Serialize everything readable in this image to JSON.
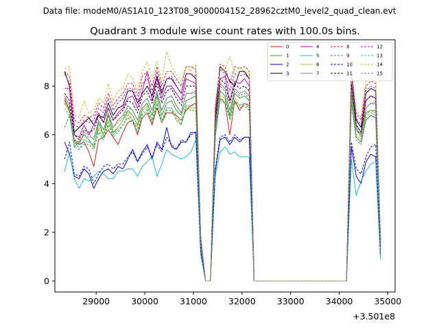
{
  "header": {
    "data_file": "Data file: modeM0/AS1A10_123T08_9000004152_28962cztM0_level2_quad_clean.evt"
  },
  "chart_data": {
    "type": "line",
    "title": "Quadrant 3 module wise count rates with 100.0s bins.",
    "xlabel": "",
    "ylabel": "",
    "x_offset_label": "+3.501e8",
    "xlim": [
      28150,
      35150
    ],
    "ylim": [
      -0.45,
      9.9
    ],
    "x_ticks": [
      29000,
      30000,
      31000,
      32000,
      33000,
      34000,
      35000
    ],
    "x_tick_labels": [
      "29000",
      "30000",
      "31000",
      "32000",
      "33000",
      "34000",
      "35000"
    ],
    "y_ticks": [
      0,
      2,
      4,
      6,
      8
    ],
    "y_tick_labels": [
      "0",
      "2",
      "4",
      "6",
      "8"
    ],
    "grid": false,
    "legend_position": "top-right",
    "time_axis": [
      28350,
      28450,
      28550,
      28650,
      28750,
      28850,
      28950,
      29050,
      29150,
      29250,
      29350,
      29450,
      29550,
      29650,
      29750,
      29850,
      29950,
      30050,
      30150,
      30250,
      30350,
      30450,
      30550,
      30650,
      30750,
      30850,
      30950,
      31050,
      31150,
      31250,
      31350,
      31450,
      31550,
      31650,
      31750,
      31850,
      31950,
      32050,
      32150,
      32250,
      32350,
      32450,
      32550,
      32650,
      32750,
      32850,
      32950,
      33050,
      33150,
      33250,
      33350,
      33450,
      33550,
      33650,
      33750,
      33850,
      33950,
      34050,
      34150,
      34250,
      34350,
      34450,
      34550,
      34650,
      34750,
      34850
    ],
    "series": [
      {
        "name": "0",
        "color": "#e31a1c",
        "dashed": false,
        "base": [
          7.5,
          7.0,
          5.8,
          5.6,
          5.7,
          5.3,
          4.7,
          5.8,
          5.9,
          6.2,
          5.9,
          5.6,
          6.1,
          6.5,
          6.6,
          6.0,
          6.7,
          6.9,
          6.4,
          7.1,
          6.5,
          6.9,
          6.9,
          6.8,
          6.6,
          7.0,
          7.2,
          7.3,
          1.5,
          0.0,
          0.0,
          5.9,
          7.5,
          7.3,
          6.0,
          7.4,
          7.0,
          7.3,
          7.2,
          0.0,
          0.0,
          0.0,
          0.0,
          0.0,
          0.0,
          0.0,
          0.0,
          0.0,
          0.0,
          0.0,
          0.0,
          0.0,
          0.0,
          0.0,
          0.0,
          0.0,
          0.0,
          0.0,
          0.0,
          7.4,
          5.9,
          5.7,
          6.6,
          6.8,
          6.7,
          1.4
        ]
      },
      {
        "name": "1",
        "color": "#2ca02c",
        "dashed": false,
        "base": [
          7.3,
          7.0,
          5.5,
          5.7,
          6.0,
          5.8,
          5.5,
          6.5,
          6.0,
          6.8,
          6.1,
          6.3,
          6.6,
          7.0,
          6.8,
          6.4,
          7.1,
          7.3,
          6.8,
          7.6,
          6.8,
          7.3,
          7.4,
          7.0,
          6.8,
          7.4,
          7.5,
          7.6,
          1.6,
          0.0,
          0.0,
          6.1,
          7.8,
          7.6,
          6.8,
          7.7,
          7.5,
          7.6,
          7.4,
          0.0,
          0.0,
          0.0,
          0.0,
          0.0,
          0.0,
          0.0,
          0.0,
          0.0,
          0.0,
          0.0,
          0.0,
          0.0,
          0.0,
          0.0,
          0.0,
          0.0,
          0.0,
          0.0,
          0.0,
          7.7,
          6.2,
          6.0,
          6.9,
          7.0,
          7.0,
          1.5
        ]
      },
      {
        "name": "2",
        "color": "#0000ee",
        "dashed": false,
        "base": [
          5.7,
          5.2,
          4.3,
          4.2,
          4.6,
          4.4,
          3.8,
          4.2,
          4.5,
          4.6,
          4.4,
          4.7,
          4.6,
          5.0,
          5.4,
          4.9,
          5.3,
          5.6,
          5.0,
          5.7,
          5.4,
          6.3,
          5.5,
          5.4,
          5.7,
          5.7,
          6.1,
          6.1,
          1.2,
          0.0,
          0.0,
          4.5,
          5.8,
          5.9,
          5.6,
          5.9,
          5.7,
          5.9,
          5.9,
          0.0,
          0.0,
          0.0,
          0.0,
          0.0,
          0.0,
          0.0,
          0.0,
          0.0,
          0.0,
          0.0,
          0.0,
          0.0,
          0.0,
          0.0,
          0.0,
          0.0,
          0.0,
          0.0,
          0.0,
          5.5,
          4.3,
          4.0,
          4.9,
          5.2,
          5.1,
          1.0
        ]
      },
      {
        "name": "3",
        "color": "#000000",
        "dashed": false,
        "base": [
          8.6,
          8.0,
          6.1,
          6.3,
          6.5,
          6.7,
          6.4,
          6.8,
          6.7,
          7.3,
          6.8,
          7.1,
          7.2,
          7.8,
          7.8,
          7.3,
          7.7,
          8.0,
          7.6,
          8.4,
          7.7,
          8.3,
          8.3,
          8.0,
          7.7,
          8.5,
          8.5,
          8.3,
          1.8,
          0.0,
          0.0,
          6.8,
          8.8,
          8.6,
          8.2,
          8.0,
          8.6,
          8.6,
          8.3,
          0.0,
          0.0,
          0.0,
          0.0,
          0.0,
          0.0,
          0.0,
          0.0,
          0.0,
          0.0,
          0.0,
          0.0,
          0.0,
          0.0,
          0.0,
          0.0,
          0.0,
          0.0,
          0.0,
          0.0,
          8.6,
          6.6,
          6.3,
          7.7,
          7.9,
          7.8,
          1.7
        ]
      },
      {
        "name": "4",
        "color": "#cc00cc",
        "dashed": false,
        "base": [
          7.9,
          7.9,
          6.0,
          5.9,
          6.4,
          6.0,
          6.4,
          6.9,
          6.5,
          7.1,
          6.6,
          6.9,
          7.1,
          7.5,
          7.6,
          7.1,
          7.8,
          8.6,
          7.4,
          8.3,
          7.5,
          8.0,
          8.0,
          7.7,
          7.4,
          8.3,
          8.2,
          8.1,
          1.7,
          0.0,
          0.0,
          6.6,
          8.3,
          8.4,
          7.4,
          8.2,
          8.1,
          8.3,
          8.0,
          0.0,
          0.0,
          0.0,
          0.0,
          0.0,
          0.0,
          0.0,
          0.0,
          0.0,
          0.0,
          0.0,
          0.0,
          0.0,
          0.0,
          0.0,
          0.0,
          0.0,
          0.0,
          0.0,
          0.0,
          8.1,
          6.4,
          6.1,
          7.4,
          7.6,
          7.5,
          1.6
        ]
      },
      {
        "name": "5",
        "color": "#17becf",
        "dashed": false,
        "base": [
          4.5,
          5.3,
          4.2,
          3.8,
          4.2,
          4.1,
          4.3,
          4.5,
          4.4,
          4.2,
          4.2,
          4.5,
          4.5,
          4.6,
          4.6,
          4.3,
          4.7,
          4.9,
          5.1,
          4.3,
          4.8,
          5.4,
          5.2,
          5.1,
          5.0,
          5.1,
          5.3,
          5.8,
          1.1,
          0.0,
          0.0,
          4.3,
          5.3,
          5.5,
          5.2,
          5.3,
          5.1,
          5.1,
          5.1,
          0.0,
          0.0,
          0.0,
          0.0,
          0.0,
          0.0,
          0.0,
          0.0,
          0.0,
          0.0,
          0.0,
          0.0,
          0.0,
          0.0,
          0.0,
          0.0,
          0.0,
          0.0,
          0.0,
          0.0,
          5.0,
          3.5,
          4.1,
          4.5,
          4.8,
          4.9,
          0.9
        ]
      },
      {
        "name": "6",
        "color": "#bcbd22",
        "dashed": false,
        "base": [
          7.4,
          6.9,
          5.6,
          5.8,
          5.8,
          5.7,
          5.6,
          6.3,
          6.0,
          6.6,
          6.0,
          6.3,
          6.6,
          6.9,
          6.6,
          6.3,
          7.0,
          7.2,
          6.6,
          7.4,
          6.5,
          7.1,
          7.1,
          6.7,
          6.4,
          7.2,
          7.1,
          7.1,
          1.5,
          0.0,
          0.0,
          6.0,
          7.6,
          7.5,
          6.7,
          7.5,
          7.2,
          7.3,
          7.1,
          0.0,
          0.0,
          0.0,
          0.0,
          0.0,
          0.0,
          0.0,
          0.0,
          0.0,
          0.0,
          0.0,
          0.0,
          0.0,
          0.0,
          0.0,
          0.0,
          0.0,
          0.0,
          0.0,
          0.0,
          7.5,
          6.0,
          5.8,
          6.8,
          7.0,
          6.9,
          1.5
        ]
      },
      {
        "name": "7",
        "color": "#7f7f7f",
        "dashed": false,
        "base": [
          7.6,
          7.2,
          5.7,
          5.6,
          6.1,
          6.0,
          5.8,
          6.6,
          6.2,
          6.9,
          6.3,
          6.6,
          6.8,
          7.2,
          7.0,
          6.6,
          7.3,
          7.5,
          7.0,
          7.8,
          7.0,
          7.5,
          7.6,
          7.2,
          6.9,
          7.7,
          7.7,
          7.8,
          1.6,
          0.0,
          0.0,
          6.3,
          8.1,
          7.9,
          7.0,
          7.9,
          7.7,
          7.8,
          7.6,
          0.0,
          0.0,
          0.0,
          0.0,
          0.0,
          0.0,
          0.0,
          0.0,
          0.0,
          0.0,
          0.0,
          0.0,
          0.0,
          0.0,
          0.0,
          0.0,
          0.0,
          0.0,
          0.0,
          0.0,
          7.9,
          6.3,
          6.0,
          7.1,
          7.3,
          7.3,
          1.5
        ]
      },
      {
        "name": "8",
        "color": "#e31a1c",
        "dashed": true,
        "base": [
          8.6,
          8.4,
          6.6,
          6.5,
          6.8,
          6.7,
          6.8,
          7.3,
          7.1,
          7.7,
          7.2,
          7.5,
          7.7,
          8.1,
          8.1,
          7.6,
          8.4,
          8.6,
          8.0,
          8.8,
          8.0,
          8.6,
          8.6,
          8.3,
          8.0,
          8.8,
          8.8,
          8.7,
          1.8,
          0.0,
          0.0,
          7.1,
          8.9,
          8.8,
          8.1,
          8.8,
          8.7,
          8.8,
          8.6,
          0.0,
          0.0,
          0.0,
          0.0,
          0.0,
          0.0,
          0.0,
          0.0,
          0.0,
          0.0,
          0.0,
          0.0,
          0.0,
          0.0,
          0.0,
          0.0,
          0.0,
          0.0,
          0.0,
          0.0,
          8.7,
          6.9,
          6.6,
          8.0,
          8.2,
          8.1,
          1.7
        ]
      },
      {
        "name": "9",
        "color": "#2ca02c",
        "dashed": true,
        "base": [
          6.3,
          6.8,
          5.8,
          5.4,
          5.6,
          5.6,
          5.4,
          6.1,
          5.8,
          6.4,
          5.9,
          6.1,
          6.4,
          6.7,
          6.5,
          6.1,
          6.8,
          7.0,
          6.5,
          7.2,
          6.5,
          7.0,
          7.0,
          6.6,
          6.4,
          7.1,
          7.0,
          7.0,
          1.5,
          0.0,
          0.0,
          5.9,
          7.4,
          7.3,
          6.6,
          7.3,
          7.1,
          7.2,
          7.0,
          0.0,
          0.0,
          0.0,
          0.0,
          0.0,
          0.0,
          0.0,
          0.0,
          0.0,
          0.0,
          0.0,
          0.0,
          0.0,
          0.0,
          0.0,
          0.0,
          0.0,
          0.0,
          0.0,
          0.0,
          7.3,
          5.8,
          5.6,
          6.6,
          6.8,
          6.7,
          1.4
        ]
      },
      {
        "name": "10",
        "color": "#0000ee",
        "dashed": true,
        "base": [
          5.0,
          5.7,
          4.4,
          4.3,
          4.7,
          4.6,
          4.0,
          4.4,
          4.7,
          4.8,
          4.6,
          4.8,
          4.8,
          5.1,
          5.3,
          4.9,
          5.2,
          5.5,
          5.1,
          5.6,
          5.3,
          5.9,
          5.6,
          5.4,
          5.8,
          5.7,
          6.0,
          6.1,
          1.2,
          0.0,
          0.0,
          4.6,
          5.9,
          6.0,
          5.7,
          6.0,
          5.8,
          5.9,
          5.9,
          0.0,
          0.0,
          0.0,
          0.0,
          0.0,
          0.0,
          0.0,
          0.0,
          0.0,
          0.0,
          0.0,
          0.0,
          0.0,
          0.0,
          0.0,
          0.0,
          0.0,
          0.0,
          0.0,
          0.0,
          5.7,
          4.6,
          4.4,
          5.1,
          5.5,
          5.6,
          1.1
        ]
      },
      {
        "name": "11",
        "color": "#000000",
        "dashed": true,
        "base": [
          7.7,
          7.4,
          6.0,
          5.8,
          6.2,
          6.1,
          6.2,
          6.8,
          6.5,
          7.1,
          6.6,
          6.8,
          7.0,
          7.4,
          7.3,
          6.9,
          7.6,
          7.8,
          7.3,
          8.1,
          7.3,
          7.8,
          7.9,
          7.5,
          7.2,
          8.0,
          8.0,
          8.0,
          1.7,
          0.0,
          0.0,
          6.5,
          8.3,
          8.1,
          7.3,
          8.1,
          7.9,
          8.0,
          7.8,
          0.0,
          0.0,
          0.0,
          0.0,
          0.0,
          0.0,
          0.0,
          0.0,
          0.0,
          0.0,
          0.0,
          0.0,
          0.0,
          0.0,
          0.0,
          0.0,
          0.0,
          0.0,
          0.0,
          0.0,
          8.1,
          6.4,
          6.1,
          7.4,
          7.6,
          7.5,
          1.6
        ]
      },
      {
        "name": "12",
        "color": "#cc00cc",
        "dashed": true,
        "base": [
          8.5,
          8.1,
          6.4,
          6.3,
          6.6,
          6.5,
          6.6,
          7.1,
          6.9,
          7.5,
          7.0,
          7.3,
          7.5,
          7.9,
          7.9,
          7.4,
          8.1,
          8.3,
          7.8,
          8.6,
          7.8,
          8.3,
          8.4,
          8.0,
          7.7,
          8.5,
          8.5,
          8.4,
          1.8,
          0.0,
          0.0,
          6.9,
          8.7,
          8.5,
          7.8,
          8.5,
          8.4,
          8.5,
          8.3,
          0.0,
          0.0,
          0.0,
          0.0,
          0.0,
          0.0,
          0.0,
          0.0,
          0.0,
          0.0,
          0.0,
          0.0,
          0.0,
          0.0,
          0.0,
          0.0,
          0.0,
          0.0,
          0.0,
          0.0,
          8.5,
          6.7,
          6.4,
          7.8,
          8.0,
          7.9,
          1.7
        ]
      },
      {
        "name": "13",
        "color": "#17becf",
        "dashed": true,
        "base": [
          7.1,
          6.8,
          5.5,
          5.4,
          5.8,
          5.7,
          5.6,
          6.2,
          5.9,
          6.5,
          6.0,
          6.2,
          6.4,
          6.8,
          6.6,
          6.2,
          6.9,
          7.1,
          6.6,
          7.3,
          6.6,
          7.1,
          7.1,
          6.8,
          6.5,
          7.2,
          7.2,
          7.2,
          1.5,
          0.0,
          0.0,
          5.9,
          7.5,
          7.4,
          6.7,
          7.4,
          7.2,
          7.3,
          7.1,
          0.0,
          0.0,
          0.0,
          0.0,
          0.0,
          0.0,
          0.0,
          0.0,
          0.0,
          0.0,
          0.0,
          0.0,
          0.0,
          0.0,
          0.0,
          0.0,
          0.0,
          0.0,
          0.0,
          0.0,
          7.4,
          5.9,
          5.7,
          6.7,
          6.9,
          6.8,
          1.4
        ]
      },
      {
        "name": "14",
        "color": "#bcbd22",
        "dashed": true,
        "base": [
          8.7,
          8.8,
          6.8,
          6.7,
          7.4,
          6.9,
          7.0,
          7.5,
          7.3,
          8.1,
          7.4,
          7.8,
          7.9,
          8.5,
          8.3,
          7.8,
          8.6,
          9.0,
          8.3,
          9.0,
          8.2,
          9.4,
          8.8,
          8.5,
          8.2,
          8.8,
          8.6,
          8.9,
          1.9,
          0.0,
          0.0,
          7.3,
          8.6,
          8.7,
          9.2,
          8.5,
          8.8,
          8.6,
          8.5,
          0.0,
          0.0,
          0.0,
          0.0,
          0.0,
          0.0,
          0.0,
          0.0,
          0.0,
          0.0,
          0.0,
          0.0,
          0.0,
          0.0,
          0.0,
          0.0,
          0.0,
          0.0,
          0.0,
          0.0,
          8.8,
          7.0,
          6.7,
          8.2,
          8.4,
          8.3,
          1.8
        ]
      },
      {
        "name": "15",
        "color": "#7f7f7f",
        "dashed": true,
        "base": [
          7.4,
          7.1,
          5.8,
          5.7,
          6.0,
          5.9,
          5.9,
          6.5,
          6.2,
          6.8,
          6.3,
          6.5,
          6.7,
          7.1,
          7.0,
          6.6,
          7.3,
          7.5,
          7.0,
          7.7,
          7.0,
          7.5,
          7.6,
          7.2,
          6.9,
          7.7,
          7.7,
          7.7,
          1.6,
          0.0,
          0.0,
          6.2,
          8.0,
          7.8,
          7.0,
          7.8,
          7.6,
          7.7,
          7.5,
          0.0,
          0.0,
          0.0,
          0.0,
          0.0,
          0.0,
          0.0,
          0.0,
          0.0,
          0.0,
          0.0,
          0.0,
          0.0,
          0.0,
          0.0,
          0.0,
          0.0,
          0.0,
          0.0,
          0.0,
          7.8,
          6.2,
          5.9,
          7.1,
          7.3,
          7.2,
          1.5
        ]
      }
    ]
  }
}
